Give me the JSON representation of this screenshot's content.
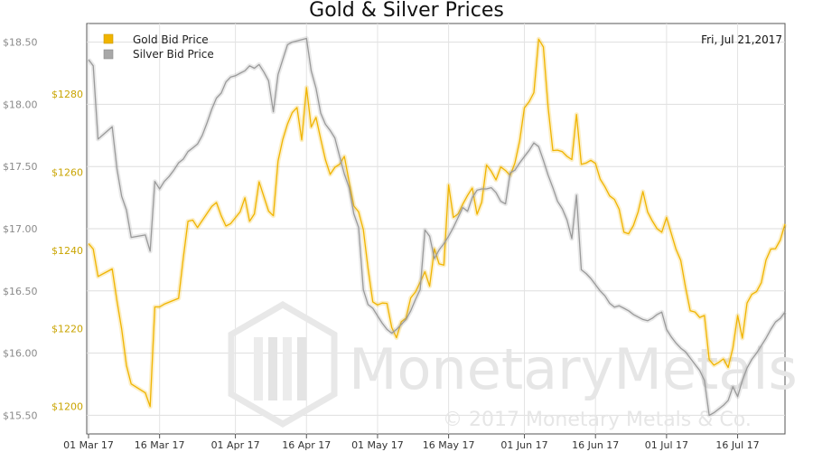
{
  "chart_data": {
    "type": "line",
    "title": "Gold & Silver Prices",
    "date_label": "Fri, Jul 21,2017",
    "watermark": {
      "name": "MonetaryMetals",
      "copyright": "© 2017 Monetary Metals & Co."
    },
    "x_ticks": [
      "01 Mar 17",
      "16 Mar 17",
      "01 Apr 17",
      "16 Apr 17",
      "01 May 17",
      "16 May 17",
      "01 Jun 17",
      "16 Jun 17",
      "01 Jul 17",
      "16 Jul 17"
    ],
    "left_axis": {
      "ticks": [
        "$15.50",
        "$16.00",
        "$16.50",
        "$17.00",
        "$17.50",
        "$18.00",
        "$18.50"
      ],
      "range": [
        15.35,
        18.65
      ],
      "label_color": "#8a8a8a"
    },
    "right_axis": {
      "ticks": [
        "$1200",
        "$1220",
        "$1240",
        "$1260",
        "$1280"
      ],
      "range": [
        1193,
        1298
      ],
      "label_color": "#c9a400"
    },
    "legend_position": "top-left",
    "grid": true,
    "series": [
      {
        "name": "Gold Bid Price",
        "axis": "right",
        "color": "#f0b400",
        "points": [
          [
            1,
            1241.7
          ],
          [
            2,
            1240.3
          ],
          [
            3,
            1233.3
          ],
          [
            6,
            1235.2
          ],
          [
            7,
            1227.0
          ],
          [
            8,
            1219.8
          ],
          [
            9,
            1210.5
          ],
          [
            10,
            1205.8
          ],
          [
            13,
            1203.5
          ],
          [
            14,
            1200.0
          ],
          [
            15,
            1225.5
          ],
          [
            16,
            1225.5
          ],
          [
            17,
            1226.2
          ],
          [
            20,
            1227.7
          ],
          [
            21,
            1238.0
          ],
          [
            22,
            1247.4
          ],
          [
            23,
            1247.7
          ],
          [
            24,
            1245.8
          ],
          [
            27,
            1251.2
          ],
          [
            28,
            1252.2
          ],
          [
            29,
            1248.8
          ],
          [
            30,
            1246.2
          ],
          [
            31,
            1246.8
          ],
          [
            33,
            1249.8
          ],
          [
            34,
            1253.4
          ],
          [
            35,
            1247.4
          ],
          [
            36,
            1249.3
          ],
          [
            37,
            1257.5
          ],
          [
            39,
            1250.0
          ],
          [
            40,
            1248.8
          ],
          [
            41,
            1262.8
          ],
          [
            42,
            1268.3
          ],
          [
            43,
            1272.3
          ],
          [
            44,
            1275.2
          ],
          [
            45,
            1276.5
          ],
          [
            46,
            1268.2
          ],
          [
            47,
            1281.6
          ],
          [
            48,
            1271.5
          ],
          [
            49,
            1274.0
          ],
          [
            50,
            1268.5
          ],
          [
            51,
            1263.2
          ],
          [
            52,
            1259.4
          ],
          [
            53,
            1261.2
          ],
          [
            54,
            1262.0
          ],
          [
            55,
            1264.0
          ],
          [
            56,
            1257.5
          ],
          [
            57,
            1251.3
          ],
          [
            58,
            1249.8
          ],
          [
            59,
            1245.3
          ],
          [
            60,
            1235.4
          ],
          [
            61,
            1226.8
          ],
          [
            62,
            1226.0
          ],
          [
            63,
            1226.5
          ],
          [
            64,
            1226.4
          ],
          [
            65,
            1220.2
          ],
          [
            66,
            1217.6
          ],
          [
            67,
            1221.7
          ],
          [
            68,
            1222.6
          ],
          [
            69,
            1227.8
          ],
          [
            70,
            1229.3
          ],
          [
            71,
            1231.8
          ],
          [
            72,
            1234.5
          ],
          [
            73,
            1230.8
          ],
          [
            74,
            1240.4
          ],
          [
            75,
            1236.5
          ],
          [
            76,
            1236.2
          ],
          [
            77,
            1256.7
          ],
          [
            78,
            1248.4
          ],
          [
            79,
            1249.3
          ],
          [
            80,
            1251.8
          ],
          [
            81,
            1254.0
          ],
          [
            82,
            1255.9
          ],
          [
            83,
            1249.2
          ],
          [
            84,
            1252.3
          ],
          [
            85,
            1261.8
          ],
          [
            86,
            1260.2
          ],
          [
            87,
            1258.0
          ],
          [
            88,
            1261.3
          ],
          [
            89,
            1260.4
          ],
          [
            90,
            1259.1
          ],
          [
            91,
            1262.3
          ],
          [
            92,
            1268.0
          ],
          [
            93,
            1276.4
          ],
          [
            94,
            1278.0
          ],
          [
            95,
            1280.3
          ],
          [
            96,
            1294.0
          ],
          [
            97,
            1292.0
          ],
          [
            98,
            1276.5
          ],
          [
            99,
            1265.5
          ],
          [
            100,
            1265.6
          ],
          [
            101,
            1265.2
          ],
          [
            102,
            1264.0
          ],
          [
            103,
            1263.2
          ],
          [
            104,
            1274.7
          ],
          [
            105,
            1262.0
          ],
          [
            106,
            1262.3
          ],
          [
            107,
            1263.0
          ],
          [
            108,
            1262.2
          ],
          [
            109,
            1258.2
          ],
          [
            110,
            1256.2
          ],
          [
            111,
            1253.9
          ],
          [
            112,
            1253.0
          ],
          [
            113,
            1250.5
          ],
          [
            114,
            1244.6
          ],
          [
            115,
            1244.2
          ],
          [
            116,
            1246.3
          ],
          [
            117,
            1249.8
          ],
          [
            118,
            1255.0
          ],
          [
            119,
            1249.8
          ],
          [
            120,
            1247.5
          ],
          [
            121,
            1245.5
          ],
          [
            122,
            1244.6
          ],
          [
            123,
            1248.4
          ],
          [
            124,
            1244.3
          ],
          [
            125,
            1240.2
          ],
          [
            126,
            1237.4
          ],
          [
            127,
            1230.5
          ],
          [
            128,
            1224.5
          ],
          [
            129,
            1224.2
          ],
          [
            130,
            1222.8
          ],
          [
            131,
            1223.3
          ],
          [
            132,
            1212.0
          ],
          [
            133,
            1210.6
          ],
          [
            134,
            1211.3
          ],
          [
            135,
            1212.2
          ],
          [
            136,
            1210.0
          ],
          [
            137,
            1215.0
          ],
          [
            138,
            1223.3
          ],
          [
            139,
            1217.5
          ],
          [
            140,
            1226.5
          ],
          [
            141,
            1228.7
          ],
          [
            142,
            1229.4
          ],
          [
            143,
            1231.7
          ],
          [
            144,
            1237.5
          ],
          [
            145,
            1240.3
          ],
          [
            146,
            1240.4
          ],
          [
            147,
            1242.6
          ],
          [
            148,
            1246.7
          ]
        ]
      },
      {
        "name": "Silver Bid Price",
        "axis": "left",
        "color": "#9a9a9a",
        "points": [
          [
            1,
            18.36
          ],
          [
            2,
            18.31
          ],
          [
            3,
            17.72
          ],
          [
            6,
            17.82
          ],
          [
            7,
            17.48
          ],
          [
            8,
            17.26
          ],
          [
            9,
            17.15
          ],
          [
            10,
            16.93
          ],
          [
            13,
            16.95
          ],
          [
            14,
            16.82
          ],
          [
            15,
            17.38
          ],
          [
            16,
            17.32
          ],
          [
            17,
            17.38
          ],
          [
            18,
            17.42
          ],
          [
            19,
            17.47
          ],
          [
            20,
            17.53
          ],
          [
            21,
            17.56
          ],
          [
            22,
            17.62
          ],
          [
            23,
            17.65
          ],
          [
            24,
            17.68
          ],
          [
            25,
            17.75
          ],
          [
            26,
            17.85
          ],
          [
            27,
            17.96
          ],
          [
            28,
            18.05
          ],
          [
            29,
            18.09
          ],
          [
            30,
            18.18
          ],
          [
            31,
            18.22
          ],
          [
            32,
            18.23
          ],
          [
            33,
            18.25
          ],
          [
            34,
            18.27
          ],
          [
            35,
            18.31
          ],
          [
            36,
            18.29
          ],
          [
            37,
            18.32
          ],
          [
            38,
            18.26
          ],
          [
            39,
            18.19
          ],
          [
            40,
            17.94
          ],
          [
            41,
            18.24
          ],
          [
            42,
            18.36
          ],
          [
            43,
            18.48
          ],
          [
            44,
            18.5
          ],
          [
            45,
            18.51
          ],
          [
            46,
            18.52
          ],
          [
            47,
            18.53
          ],
          [
            48,
            18.27
          ],
          [
            49,
            18.13
          ],
          [
            50,
            17.93
          ],
          [
            51,
            17.84
          ],
          [
            52,
            17.79
          ],
          [
            53,
            17.73
          ],
          [
            54,
            17.58
          ],
          [
            55,
            17.44
          ],
          [
            56,
            17.33
          ],
          [
            57,
            17.12
          ],
          [
            58,
            17.01
          ],
          [
            59,
            16.51
          ],
          [
            60,
            16.39
          ],
          [
            61,
            16.36
          ],
          [
            62,
            16.3
          ],
          [
            63,
            16.24
          ],
          [
            64,
            16.19
          ],
          [
            65,
            16.16
          ],
          [
            66,
            16.19
          ],
          [
            67,
            16.23
          ],
          [
            68,
            16.27
          ],
          [
            69,
            16.34
          ],
          [
            70,
            16.43
          ],
          [
            71,
            16.51
          ],
          [
            72,
            16.99
          ],
          [
            73,
            16.94
          ],
          [
            74,
            16.76
          ],
          [
            75,
            16.83
          ],
          [
            76,
            16.88
          ],
          [
            77,
            16.94
          ],
          [
            78,
            17.01
          ],
          [
            79,
            17.09
          ],
          [
            80,
            17.17
          ],
          [
            81,
            17.14
          ],
          [
            82,
            17.25
          ],
          [
            83,
            17.31
          ],
          [
            84,
            17.32
          ],
          [
            85,
            17.32
          ],
          [
            86,
            17.33
          ],
          [
            87,
            17.29
          ],
          [
            88,
            17.22
          ],
          [
            89,
            17.2
          ],
          [
            90,
            17.45
          ],
          [
            91,
            17.47
          ],
          [
            92,
            17.53
          ],
          [
            93,
            17.58
          ],
          [
            94,
            17.63
          ],
          [
            95,
            17.69
          ],
          [
            96,
            17.66
          ],
          [
            97,
            17.55
          ],
          [
            98,
            17.43
          ],
          [
            99,
            17.33
          ],
          [
            100,
            17.22
          ],
          [
            101,
            17.16
          ],
          [
            102,
            17.07
          ],
          [
            103,
            16.92
          ],
          [
            104,
            17.27
          ],
          [
            105,
            16.67
          ],
          [
            106,
            16.64
          ],
          [
            107,
            16.6
          ],
          [
            108,
            16.55
          ],
          [
            109,
            16.5
          ],
          [
            110,
            16.46
          ],
          [
            111,
            16.4
          ],
          [
            112,
            16.37
          ],
          [
            113,
            16.38
          ],
          [
            114,
            16.36
          ],
          [
            115,
            16.34
          ],
          [
            116,
            16.31
          ],
          [
            117,
            16.29
          ],
          [
            118,
            16.27
          ],
          [
            119,
            16.26
          ],
          [
            120,
            16.28
          ],
          [
            121,
            16.31
          ],
          [
            122,
            16.33
          ],
          [
            123,
            16.19
          ],
          [
            124,
            16.13
          ],
          [
            125,
            16.08
          ],
          [
            126,
            16.04
          ],
          [
            127,
            16.01
          ],
          [
            128,
            15.96
          ],
          [
            129,
            15.91
          ],
          [
            130,
            15.86
          ],
          [
            131,
            15.78
          ],
          [
            132,
            15.5
          ],
          [
            133,
            15.52
          ],
          [
            134,
            15.55
          ],
          [
            135,
            15.58
          ],
          [
            136,
            15.62
          ],
          [
            137,
            15.73
          ],
          [
            138,
            15.65
          ],
          [
            139,
            15.78
          ],
          [
            140,
            15.88
          ],
          [
            141,
            15.95
          ],
          [
            142,
            16.0
          ],
          [
            143,
            16.06
          ],
          [
            144,
            16.12
          ],
          [
            145,
            16.19
          ],
          [
            146,
            16.25
          ],
          [
            147,
            16.28
          ],
          [
            148,
            16.33
          ]
        ]
      }
    ]
  }
}
